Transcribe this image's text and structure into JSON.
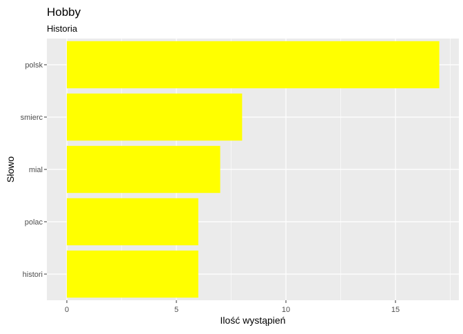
{
  "chart_data": {
    "type": "bar",
    "orientation": "horizontal",
    "title": "Hobby",
    "subtitle": "Historia",
    "xlabel": "Ilość wystąpień",
    "ylabel": "Słowo",
    "categories": [
      "polsk",
      "smierc",
      "mial",
      "polac",
      "histori"
    ],
    "values": [
      17,
      8,
      7,
      6,
      6
    ],
    "xlim": [
      0,
      17.85
    ],
    "xticks": [
      0,
      5,
      10,
      15
    ],
    "xtick_labels": [
      "0",
      "5",
      "10",
      "15"
    ],
    "grid": true,
    "legend": "none",
    "colors": {
      "bar": "#FFFF00",
      "panel_background": "#EBEBEB",
      "grid": "#FFFFFF",
      "text": "#000000",
      "tick_text": "#4D4D4D"
    }
  }
}
